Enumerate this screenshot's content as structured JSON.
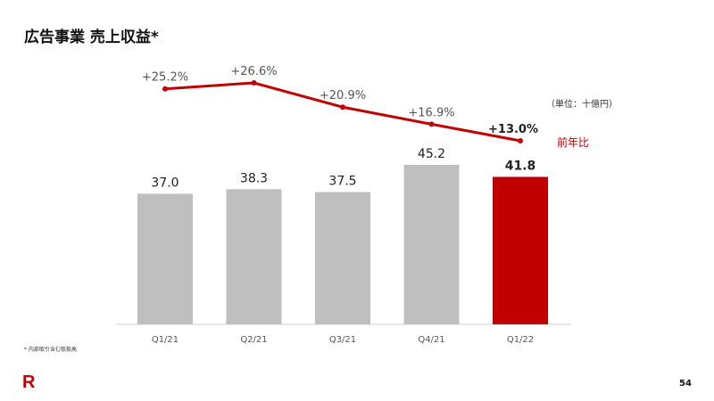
{
  "title": "広告事業 売上収益*",
  "unit": "（単位：十億円）",
  "legend_line": "前年比",
  "footnote": "* 内部取引含む取扱高",
  "logo": "R",
  "page_number": "54",
  "colors": {
    "bar": "#bfbfbf",
    "highlight": "#c00000",
    "line": "#c00000"
  },
  "chart_data": {
    "type": "bar",
    "categories": [
      "Q1/21",
      "Q2/21",
      "Q3/21",
      "Q4/21",
      "Q1/22"
    ],
    "series": [
      {
        "name": "売上収益",
        "values": [
          37.0,
          38.3,
          37.5,
          45.2,
          41.8
        ],
        "labels": [
          "37.0",
          "38.3",
          "37.5",
          "45.2",
          "41.8"
        ]
      },
      {
        "name": "前年比",
        "type": "line",
        "values": [
          25.2,
          26.6,
          20.9,
          16.9,
          13.0
        ],
        "labels": [
          "+25.2%",
          "+26.6%",
          "+20.9%",
          "+16.9%",
          "+13.0%"
        ]
      }
    ],
    "highlight_index": 4
  }
}
